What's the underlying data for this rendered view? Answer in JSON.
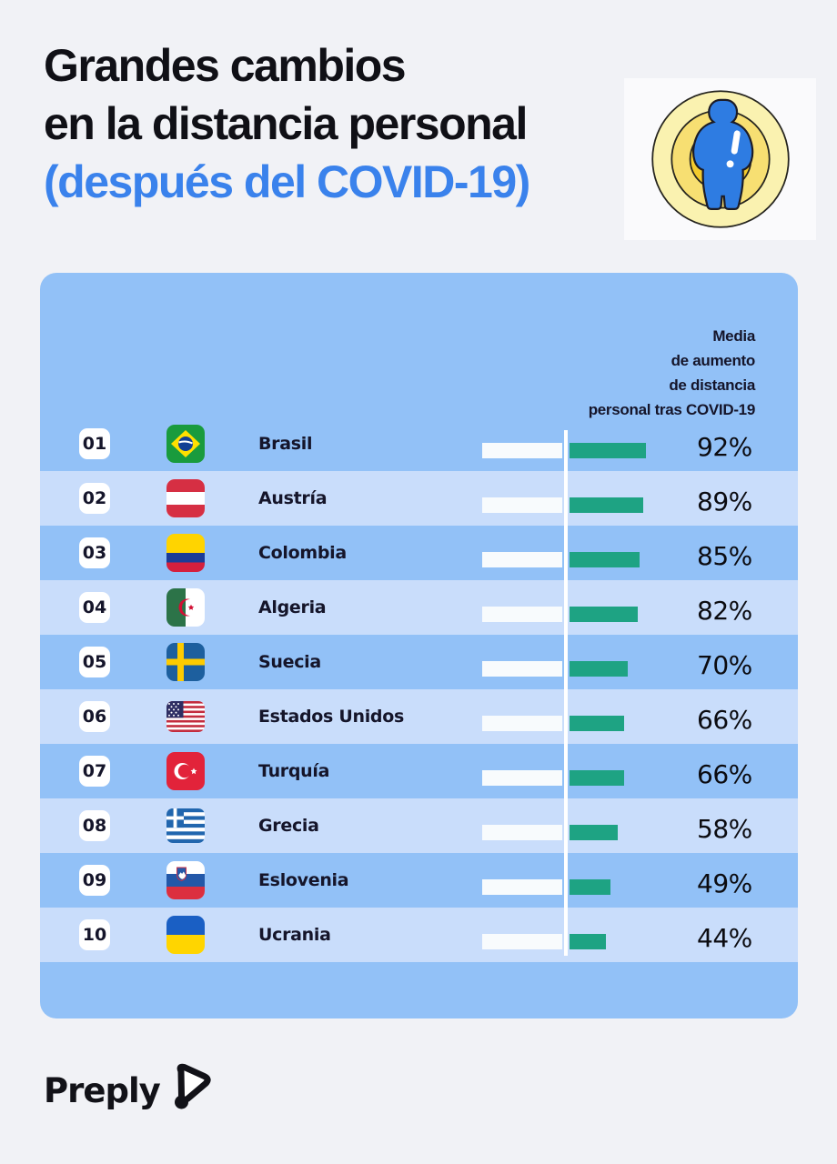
{
  "header": {
    "title_line1": "Grandes cambios",
    "title_line2": "en la distancia personal",
    "title_line3": "(después del COVID-19)",
    "title_color": "#101016",
    "accent_color": "#3a82ec",
    "icon": "person-in-distance-circles-icon"
  },
  "table": {
    "panel_color": "#92c1f7",
    "alt_row_color": "#c9ddfb",
    "bar_track_color": "#f8fbfd",
    "bar_fill_color": "#1ea383",
    "panel_header": {
      "lines": [
        "Media",
        "de aumento",
        "de distancia",
        "personal tras COVID-19"
      ]
    },
    "rows": [
      {
        "rank": "01",
        "country": "Brasil",
        "value": 92,
        "value_label": "92%",
        "flag": "brasil-flag"
      },
      {
        "rank": "02",
        "country": "Austría",
        "value": 89,
        "value_label": "89%",
        "flag": "austria-flag"
      },
      {
        "rank": "03",
        "country": "Colombia",
        "value": 85,
        "value_label": "85%",
        "flag": "colombia-flag"
      },
      {
        "rank": "04",
        "country": "Algeria",
        "value": 82,
        "value_label": "82%",
        "flag": "algeria-flag"
      },
      {
        "rank": "05",
        "country": "Suecia",
        "value": 70,
        "value_label": "70%",
        "flag": "suecia-flag"
      },
      {
        "rank": "06",
        "country": "Estados Unidos",
        "value": 66,
        "value_label": "66%",
        "flag": "estados-unidos-flag"
      },
      {
        "rank": "07",
        "country": "Turquía",
        "value": 66,
        "value_label": "66%",
        "flag": "turquia-flag"
      },
      {
        "rank": "08",
        "country": "Grecia",
        "value": 58,
        "value_label": "58%",
        "flag": "grecia-flag"
      },
      {
        "rank": "09",
        "country": "Eslovenia",
        "value": 49,
        "value_label": "49%",
        "flag": "eslovenia-flag"
      },
      {
        "rank": "10",
        "country": "Ucrania",
        "value": 44,
        "value_label": "44%",
        "flag": "ucrania-flag"
      }
    ]
  },
  "footer": {
    "brand": "Preply"
  },
  "chart_data": {
    "type": "bar",
    "orientation": "horizontal",
    "title": "Grandes cambios en la distancia personal (después del COVID-19)",
    "series_label": "Media de aumento de distancia personal tras COVID-19",
    "categories": [
      "Brasil",
      "Austría",
      "Colombia",
      "Algeria",
      "Suecia",
      "Estados Unidos",
      "Turquía",
      "Grecia",
      "Eslovenia",
      "Ucrania"
    ],
    "values": [
      92,
      89,
      85,
      82,
      70,
      66,
      66,
      58,
      49,
      44
    ],
    "value_suffix": "%",
    "xlim": [
      0,
      100
    ],
    "bar_color": "#1ea383",
    "grid": false,
    "legend": "none"
  }
}
